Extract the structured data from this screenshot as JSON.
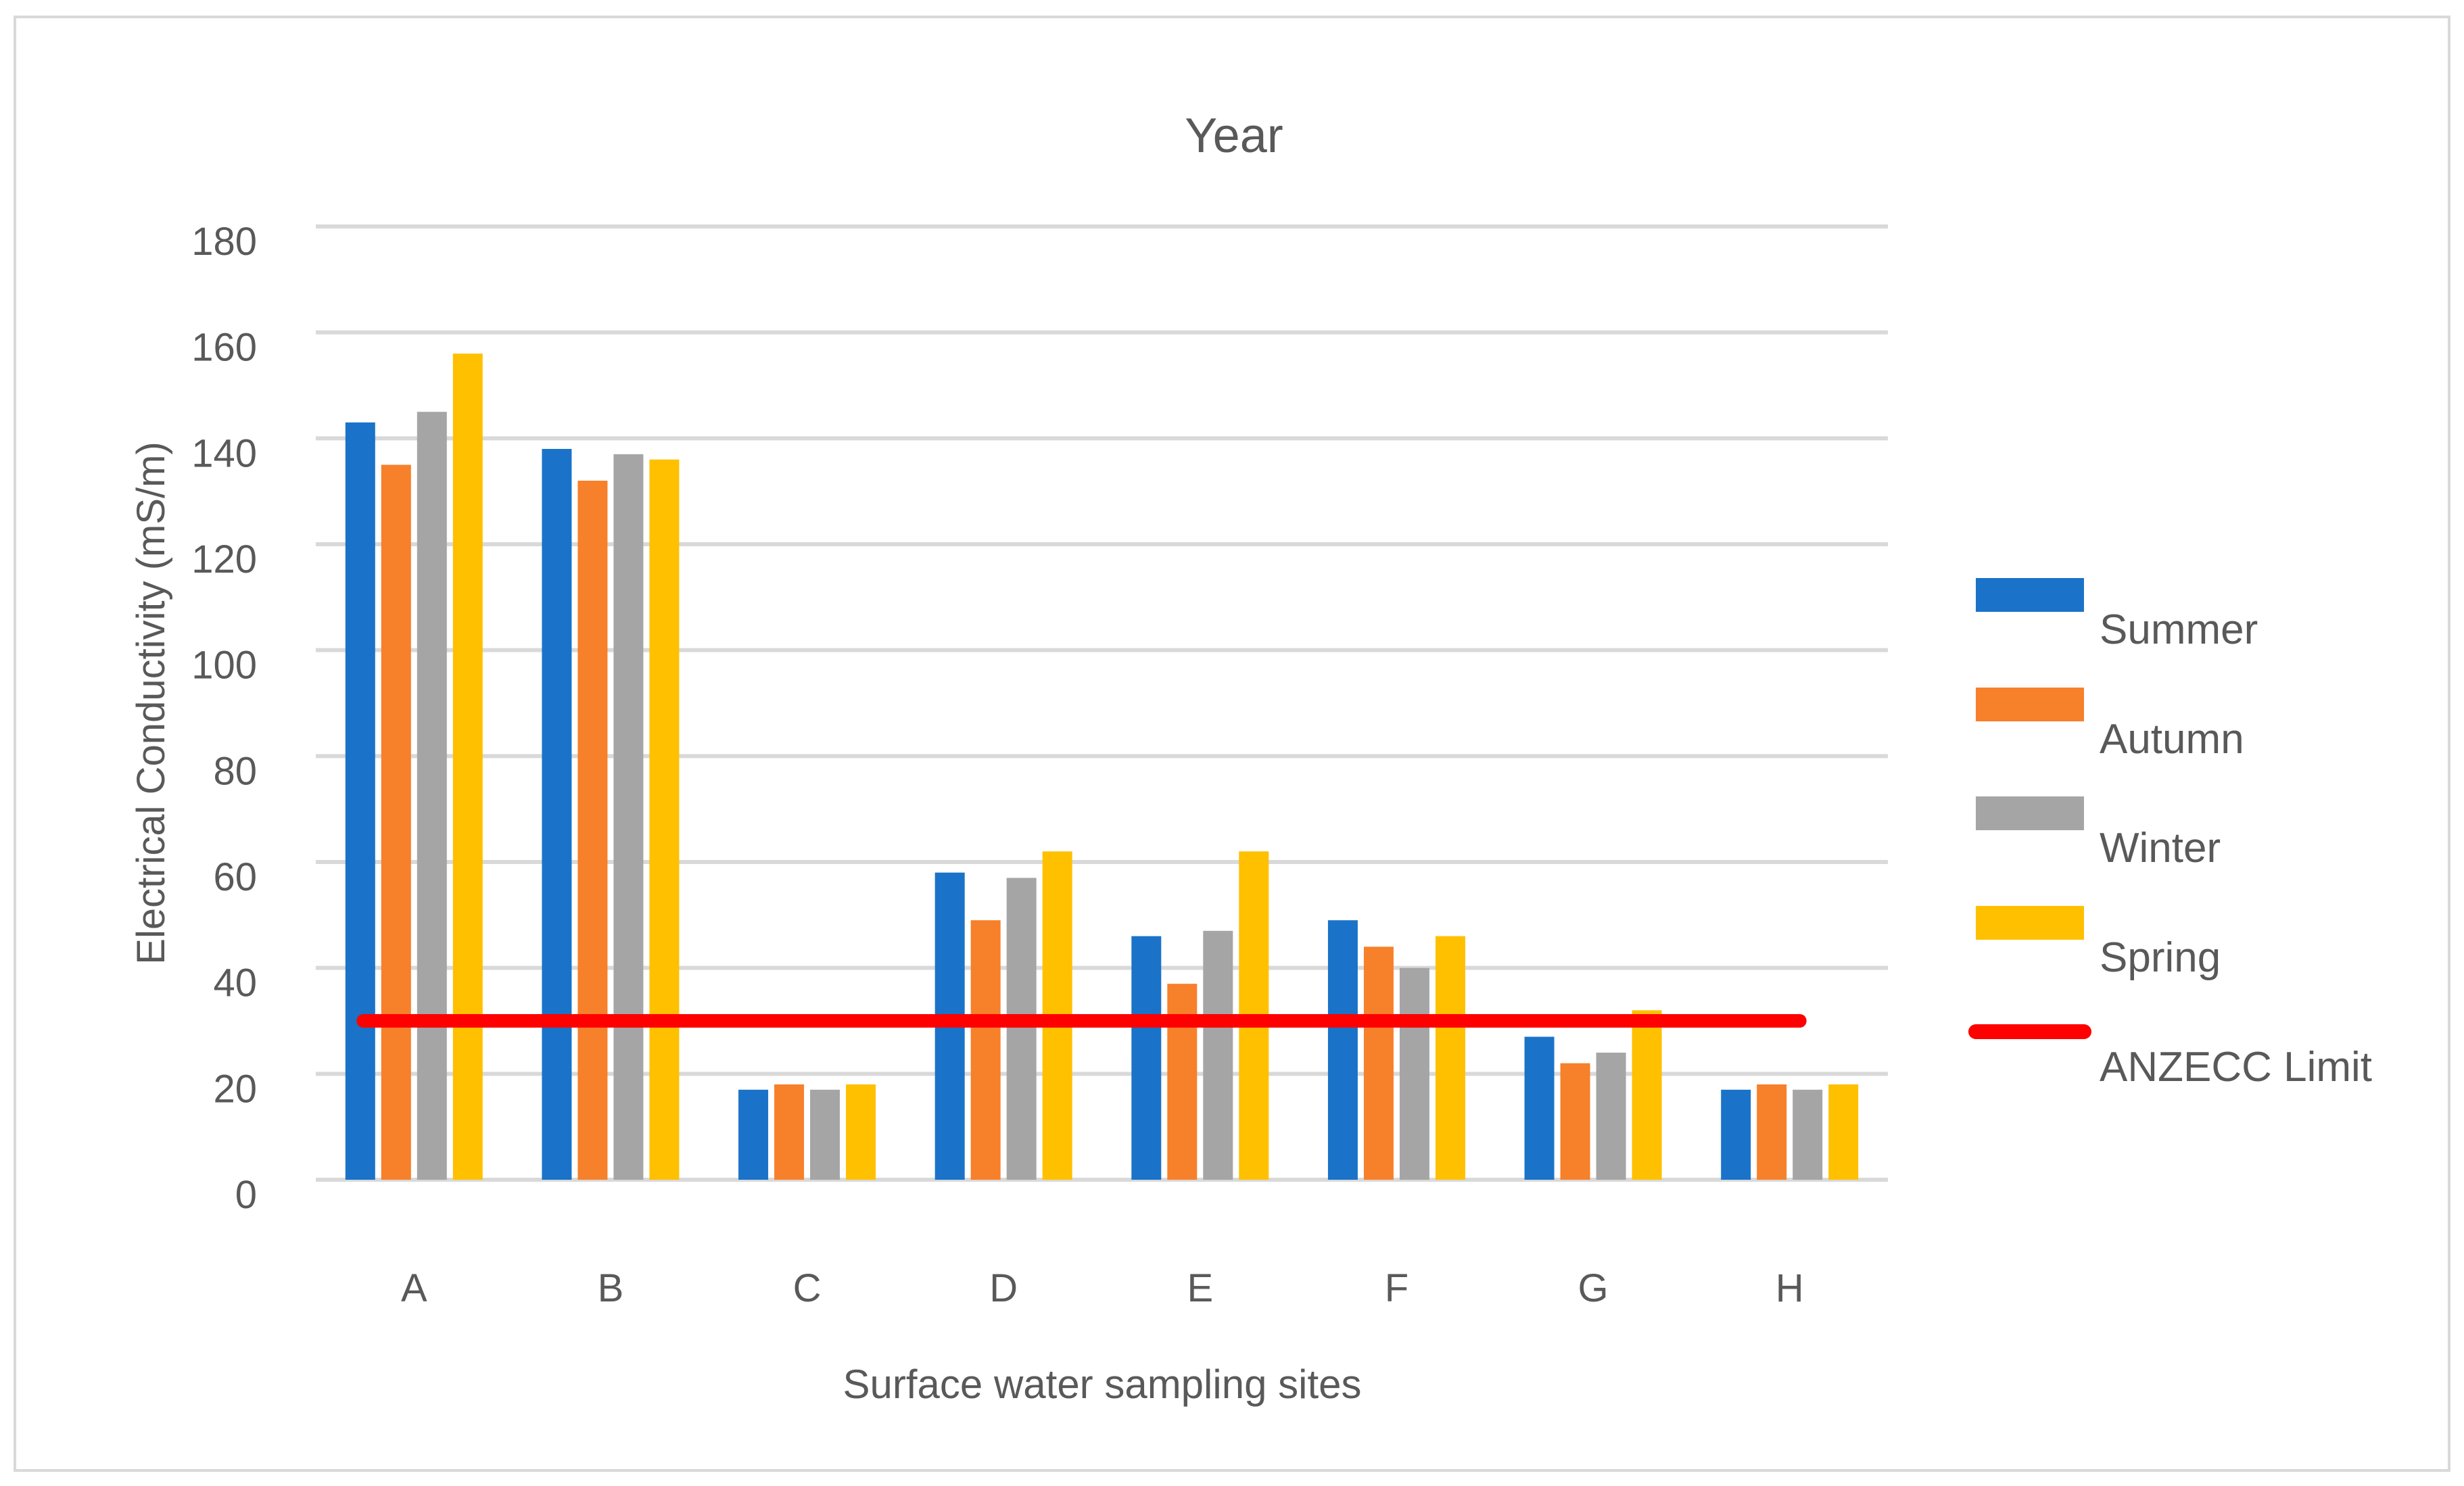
{
  "chart_data": {
    "type": "bar",
    "title": "Year",
    "xlabel": "Surface water sampling sites",
    "ylabel": "Electrical Conductivity (mS/m)",
    "categories": [
      "A",
      "B",
      "C",
      "D",
      "E",
      "F",
      "G",
      "H"
    ],
    "ylim": [
      0,
      180
    ],
    "yticks": [
      0,
      20,
      40,
      60,
      80,
      100,
      120,
      140,
      160,
      180
    ],
    "grid": true,
    "legend_position": "right",
    "series": [
      {
        "name": "Summer",
        "color": "#1a73c8",
        "values": [
          143,
          138,
          17,
          58,
          46,
          49,
          27,
          17
        ]
      },
      {
        "name": "Autumn",
        "color": "#f7802a",
        "values": [
          135,
          132,
          18,
          49,
          37,
          44,
          22,
          18
        ]
      },
      {
        "name": "Winter",
        "color": "#a5a5a5",
        "values": [
          145,
          137,
          17,
          57,
          47,
          40,
          24,
          17
        ]
      },
      {
        "name": "Spring",
        "color": "#ffc000",
        "values": [
          156,
          136,
          18,
          62,
          62,
          46,
          32,
          18
        ]
      }
    ],
    "reference_line": {
      "name": "ANZECC Limit",
      "value": 30,
      "color": "#ff0000"
    }
  }
}
